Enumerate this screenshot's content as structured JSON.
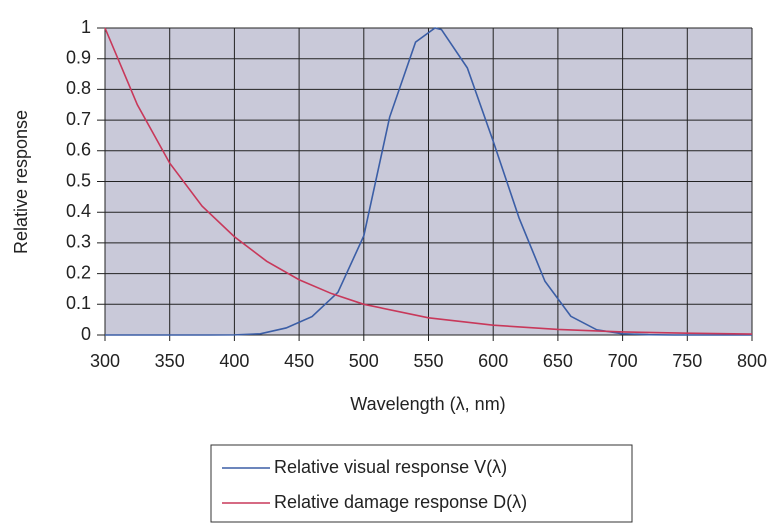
{
  "chart_data": {
    "type": "line",
    "x_label": "Wavelength (λ, nm)",
    "y_label": "Relative response",
    "xlim": [
      300,
      800
    ],
    "xticks": [
      300,
      350,
      400,
      450,
      500,
      550,
      600,
      650,
      700,
      750,
      800
    ],
    "ylim": [
      0,
      1
    ],
    "yticks": [
      0,
      0.1,
      0.2,
      0.3,
      0.4,
      0.5,
      0.6,
      0.7,
      0.8,
      0.9,
      1
    ],
    "grid": true,
    "legend": "bottom",
    "series": [
      {
        "name": "Relative visual response V(λ)",
        "color": "#3b5ea6",
        "x": [
          300,
          380,
          400,
          420,
          440,
          460,
          480,
          500,
          520,
          540,
          555,
          560,
          580,
          600,
          620,
          640,
          660,
          680,
          700,
          720,
          740,
          800
        ],
        "values": [
          0,
          0,
          0.0004,
          0.004,
          0.023,
          0.06,
          0.139,
          0.323,
          0.71,
          0.954,
          1.0,
          0.995,
          0.87,
          0.631,
          0.381,
          0.175,
          0.061,
          0.017,
          0.004,
          0.001,
          0,
          0
        ]
      },
      {
        "name": "Relative damage response D(λ)",
        "color": "#c8385a",
        "x": [
          300,
          325,
          350,
          375,
          400,
          425,
          450,
          475,
          500,
          550,
          600,
          650,
          700,
          750,
          800
        ],
        "values": [
          1,
          0.75,
          0.56,
          0.42,
          0.32,
          0.24,
          0.18,
          0.135,
          0.1,
          0.056,
          0.032,
          0.018,
          0.01,
          0.006,
          0.003
        ]
      }
    ]
  }
}
